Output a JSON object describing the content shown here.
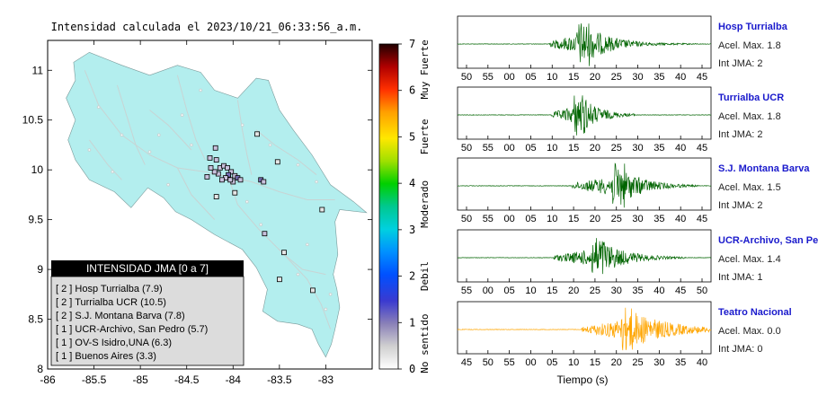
{
  "chart_data": [
    {
      "type": "map",
      "title": "Intensidad calculada el 2023/10/21_06:33:56_a.m.",
      "xlim": [
        -86,
        -82.5
      ],
      "ylim": [
        8,
        11.3
      ],
      "x_ticks": [
        -86,
        -85.5,
        -85,
        -84.5,
        -84,
        -83.5,
        -83
      ],
      "y_ticks": [
        8,
        8.5,
        9,
        9.5,
        10,
        10.5,
        11
      ],
      "x_tick_labels": [
        "-86",
        "-85.5",
        "-85",
        "-84.5",
        "-84",
        "-83.5",
        "-83"
      ],
      "y_tick_labels": [
        "8",
        "8.5",
        "9",
        "9.5",
        "10",
        "10.5",
        "11"
      ],
      "land_color": "#b3eeee",
      "stations": [
        [
          -84.25,
          10.12,
          1
        ],
        [
          -84.18,
          10.1,
          1
        ],
        [
          -84.14,
          10.02,
          1
        ],
        [
          -84.1,
          10.04,
          1
        ],
        [
          -84.06,
          10.02,
          1
        ],
        [
          -84.02,
          9.98,
          1
        ],
        [
          -84.05,
          9.95,
          2
        ],
        [
          -84.08,
          9.92,
          1
        ],
        [
          -84.12,
          9.9,
          1
        ],
        [
          -84.16,
          9.96,
          1
        ],
        [
          -84.2,
          9.98,
          1
        ],
        [
          -84.24,
          10.02,
          1
        ],
        [
          -83.98,
          9.94,
          1
        ],
        [
          -83.95,
          9.92,
          2
        ],
        [
          -83.92,
          9.9,
          1
        ],
        [
          -84.0,
          9.88,
          1
        ],
        [
          -84.03,
          9.9,
          1
        ],
        [
          -84.28,
          9.93,
          1
        ],
        [
          -83.7,
          9.9,
          2
        ],
        [
          -83.67,
          9.88,
          1
        ],
        [
          -83.74,
          10.36,
          0
        ],
        [
          -83.52,
          10.08,
          0
        ],
        [
          -84.19,
          10.22,
          1
        ],
        [
          -83.98,
          9.77,
          0
        ],
        [
          -84.18,
          9.73,
          0
        ],
        [
          -83.66,
          9.36,
          1
        ],
        [
          -83.45,
          9.17,
          0
        ],
        [
          -83.04,
          9.6,
          0
        ],
        [
          -83.5,
          8.9,
          0
        ],
        [
          -83.14,
          8.79,
          0
        ]
      ]
    },
    {
      "type": "colorbar",
      "range": [
        0,
        7
      ],
      "ticks": [
        0,
        1,
        2,
        3,
        4,
        5,
        6,
        7
      ],
      "tick_labels": [
        "0",
        "1",
        "2",
        "3",
        "4",
        "5",
        "6",
        "7"
      ],
      "categories": [
        "No sentido",
        "Debil",
        "Moderado",
        "Fuerte",
        "Muy Fuerte"
      ]
    },
    {
      "type": "line",
      "xlabel": "Tiempo (s)",
      "series": [
        {
          "name": "Hosp Turrialba",
          "accel_label": "Acel. Max. 1.8",
          "jma_label": "Int JMA: 2",
          "color": "#006400",
          "ticks": [
            "50",
            "55",
            "00",
            "05",
            "10",
            "15",
            "20",
            "25",
            "30",
            "35",
            "40",
            "45"
          ],
          "onset": 0.36,
          "peak": 0.49,
          "decay": 0.1,
          "amp": 1.0,
          "end": 0.95
        },
        {
          "name": "Turrialba UCR",
          "accel_label": "Acel. Max. 1.8",
          "jma_label": "Int JMA: 2",
          "color": "#006400",
          "ticks": [
            "50",
            "55",
            "00",
            "05",
            "10",
            "15",
            "20",
            "25",
            "30",
            "35",
            "40",
            "45"
          ],
          "onset": 0.37,
          "peak": 0.48,
          "decay": 0.07,
          "amp": 0.95,
          "end": 0.7
        },
        {
          "name": "S.J. Montana Barva",
          "accel_label": "Acel. Max. 1.5",
          "jma_label": "Int JMA: 2",
          "color": "#006400",
          "ticks": [
            "50",
            "55",
            "00",
            "05",
            "10",
            "15",
            "20",
            "25",
            "30",
            "35",
            "40",
            "45"
          ],
          "onset": 0.45,
          "peak": 0.63,
          "decay": 0.09,
          "amp": 1.0,
          "end": 0.95
        },
        {
          "name": "UCR-Archivo, San Pedro",
          "accel_label": "Acel. Max. 1.4",
          "jma_label": "Int JMA: 1",
          "color": "#006400",
          "ticks": [
            "55",
            "00",
            "05",
            "10",
            "15",
            "20",
            "25",
            "30",
            "35",
            "40",
            "45",
            "50"
          ],
          "onset": 0.38,
          "peak": 0.55,
          "decay": 0.1,
          "amp": 0.9,
          "end": 0.9
        },
        {
          "name": "Teatro Nacional",
          "accel_label": "Acel. Max. 0.0",
          "jma_label": "Int JMA: 0",
          "color": "#ffa500",
          "ticks": [
            "45",
            "50",
            "55",
            "00",
            "05",
            "10",
            "15",
            "20",
            "25",
            "30",
            "35",
            "40"
          ],
          "onset": 0.49,
          "peak": 0.66,
          "decay": 0.15,
          "amp": 1.0,
          "end": 1.0
        }
      ]
    }
  ],
  "legend": {
    "title": "INTENSIDAD JMA [0 a 7]",
    "items": [
      "[ 2 ]  Hosp Turrialba (7.9)",
      "[ 2 ]  Turrialba UCR (10.5)",
      "[ 2 ]  S.J. Montana Barva (7.8)",
      "[ 1 ]  UCR-Archivo, San Pedro (5.7)",
      "[ 1 ]  OV-S Isidro,UNA (6.3)",
      "[ 1 ]  Buenos Aires (3.3)"
    ]
  }
}
